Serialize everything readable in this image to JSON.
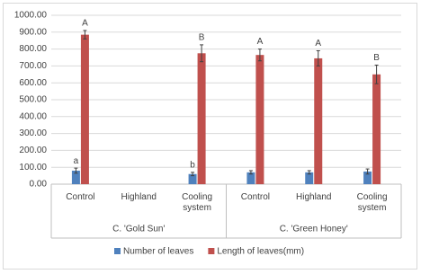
{
  "chart_data": {
    "type": "bar",
    "categories": [
      "Control",
      "Highland",
      "Cooling system",
      "Control",
      "Highland",
      "Cooling system"
    ],
    "groups": [
      {
        "label": "C. 'Gold Sun'",
        "size": 3
      },
      {
        "label": "C. 'Green Honey'",
        "size": 3
      }
    ],
    "series": [
      {
        "name": "Number of leaves",
        "color": "#4f81bd",
        "values": [
          80,
          null,
          60,
          70,
          70,
          75
        ],
        "errors": [
          15,
          null,
          10,
          10,
          10,
          15
        ],
        "letters": [
          "a",
          null,
          "b",
          null,
          null,
          null
        ]
      },
      {
        "name": "Length of leaves(mm)",
        "color": "#c0504d",
        "values": [
          885,
          null,
          775,
          765,
          745,
          650
        ],
        "errors": [
          25,
          null,
          50,
          35,
          45,
          55
        ],
        "letters": [
          "A",
          null,
          "B",
          "A",
          "A",
          "B"
        ]
      }
    ],
    "ylim": [
      0,
      1000
    ],
    "yticks": [
      {
        "value": 0,
        "label": "0.00"
      },
      {
        "value": 100,
        "label": "100.00"
      },
      {
        "value": 200,
        "label": "200.00"
      },
      {
        "value": 300,
        "label": "300.00"
      },
      {
        "value": 400,
        "label": "400.00"
      },
      {
        "value": 500,
        "label": "500.00"
      },
      {
        "value": 600,
        "label": "600.00"
      },
      {
        "value": 700,
        "label": "700.00"
      },
      {
        "value": 800,
        "label": "800.00"
      },
      {
        "value": 900,
        "label": "900.00"
      },
      {
        "value": 1000,
        "label": "1000.00"
      }
    ],
    "grid": true,
    "legend": "bottom"
  }
}
